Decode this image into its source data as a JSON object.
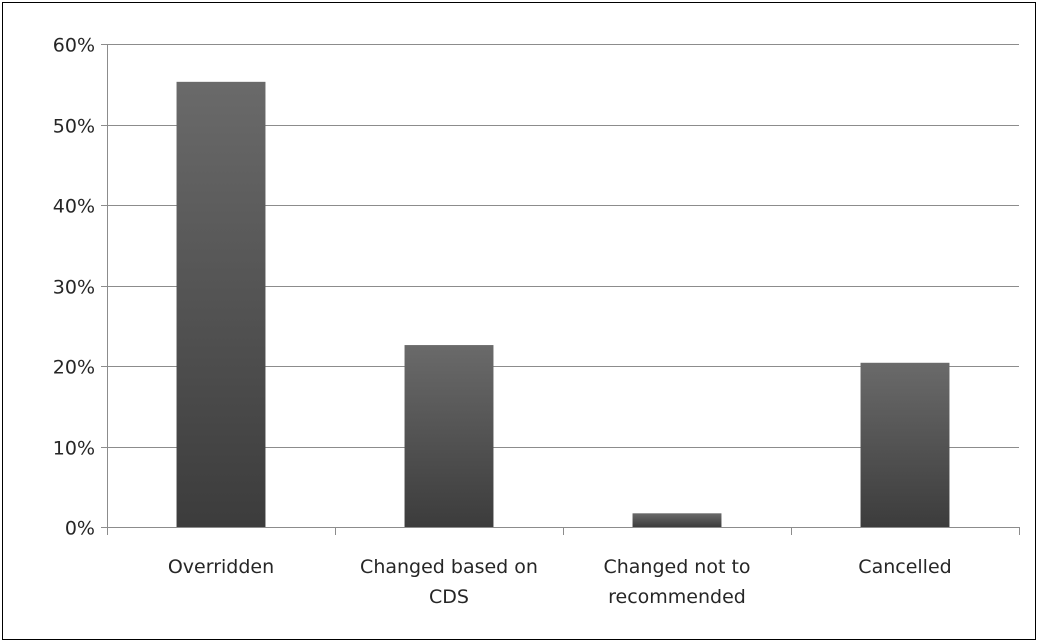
{
  "chart_data": {
    "type": "bar",
    "title": "",
    "xlabel": "",
    "ylabel": "",
    "categories": [
      [
        "Overridden"
      ],
      [
        "Changed based on",
        "CDS"
      ],
      [
        "Changed not to",
        "recommended"
      ],
      [
        "Cancelled"
      ]
    ],
    "values": [
      55.3,
      22.6,
      1.7,
      20.4
    ],
    "ylim": [
      0,
      60
    ],
    "yticks": [
      "0%",
      "10%",
      "20%",
      "30%",
      "40%",
      "50%",
      "60%"
    ],
    "grid": true,
    "legend": "none",
    "colors": {
      "bar_top": "#6a6a6a",
      "bar_bottom": "#3c3c3c",
      "grid": "#8c8c8c",
      "axis": "#8c8c8c",
      "text": "#262626"
    }
  }
}
